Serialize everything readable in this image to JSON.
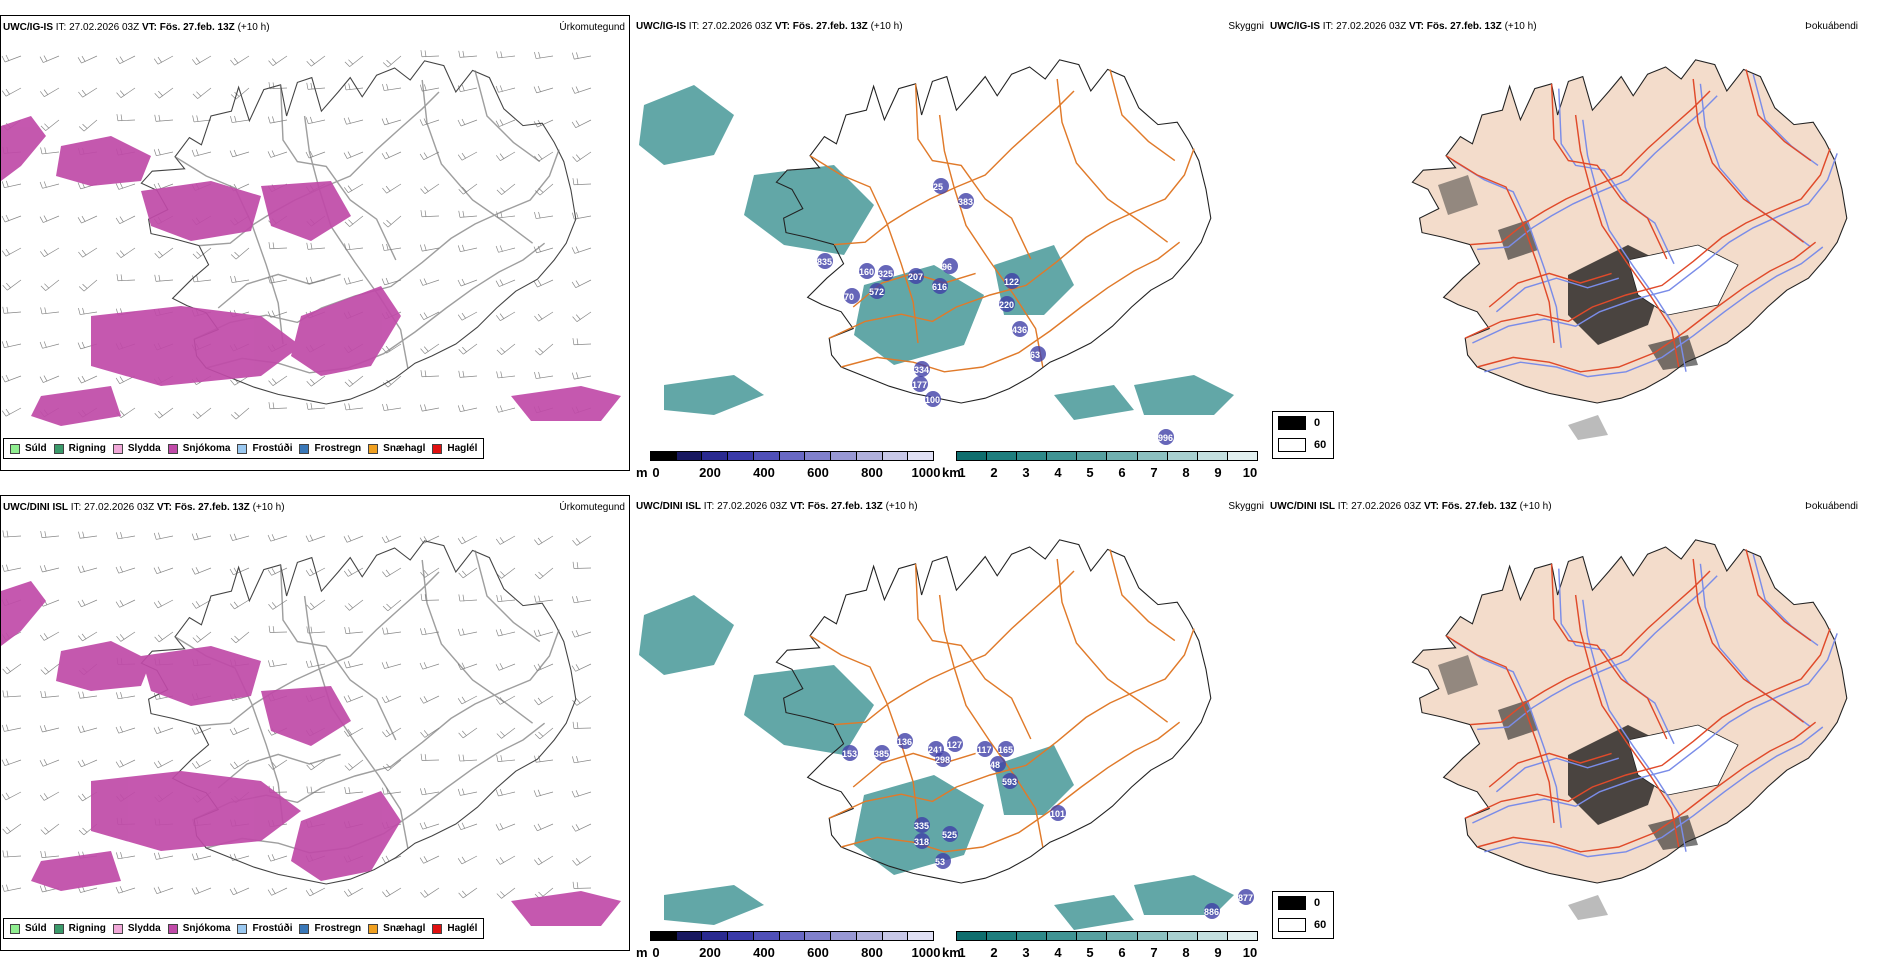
{
  "rows": [
    {
      "model": "UWC/IG-IS",
      "it_label": "IT:",
      "it_value": "27.02.2026 03Z",
      "vt_label": "VT:",
      "vt_value": "Fös. 27.feb. 13Z",
      "lead": "(+10 h)",
      "cloud_values": [
        "25",
        "383",
        "835",
        "160",
        "325",
        "207",
        "96",
        "572",
        "616",
        "70",
        "122",
        "220",
        "436",
        "63",
        "334",
        "177",
        "100",
        "996"
      ]
    },
    {
      "model": "UWC/DINI ISL",
      "it_label": "IT:",
      "it_value": "27.02.2026 03Z",
      "vt_label": "VT:",
      "vt_value": "Fös. 27.feb. 13Z",
      "lead": "(+10 h)",
      "cloud_values": [
        "136",
        "241",
        "127",
        "117",
        "165",
        "153",
        "385",
        "298",
        "48",
        "593",
        "101",
        "335",
        "525",
        "318",
        "53",
        "877",
        "886"
      ]
    }
  ],
  "panel_titles": {
    "precip": "Úrkomutegund",
    "cloud": "Skyggni",
    "fog": "Þokuábendi"
  },
  "precip_legend": [
    {
      "label": "Súld",
      "color": "#90ee90"
    },
    {
      "label": "Rigning",
      "color": "#3a9a6a"
    },
    {
      "label": "Slydda",
      "color": "#f0a8d8"
    },
    {
      "label": "Snjókoma",
      "color": "#c04aa8"
    },
    {
      "label": "Frostúði",
      "color": "#9ac8f0"
    },
    {
      "label": "Frostregn",
      "color": "#3a78b8"
    },
    {
      "label": "Snæhagl",
      "color": "#f0a020"
    },
    {
      "label": "Haglél",
      "color": "#e01010"
    }
  ],
  "cloudbase_bar": {
    "unit": "m",
    "ticks": [
      "0",
      "200",
      "400",
      "600",
      "800",
      "1000"
    ],
    "colors": [
      "#000000",
      "#181860",
      "#2a2a90",
      "#3a3aa8",
      "#5050b8",
      "#6868c4",
      "#8080cc",
      "#9898d4",
      "#b0b0dc",
      "#c8c8e8",
      "#e0e0f4"
    ]
  },
  "visibility_bar": {
    "unit": "km",
    "ticks": [
      "1",
      "2",
      "3",
      "4",
      "5",
      "6",
      "7",
      "8",
      "9",
      "10"
    ],
    "colors": [
      "#0e6e6e",
      "#1e7e7e",
      "#2e8a8a",
      "#409494",
      "#56a0a0",
      "#70b0b0",
      "#8cc0c0",
      "#a8d0d0",
      "#c4e0e0",
      "#e2f0f0"
    ]
  },
  "fog_legend": [
    {
      "label": "0",
      "color": "#000000"
    },
    {
      "label": "60",
      "color": "#ffffff"
    }
  ],
  "colors": {
    "snow": "#c04aa8",
    "vis": "#2e8a8a",
    "roads": "#e07a2a",
    "land_fog": "#f3dccb",
    "rivers": "#7a8ce8"
  }
}
